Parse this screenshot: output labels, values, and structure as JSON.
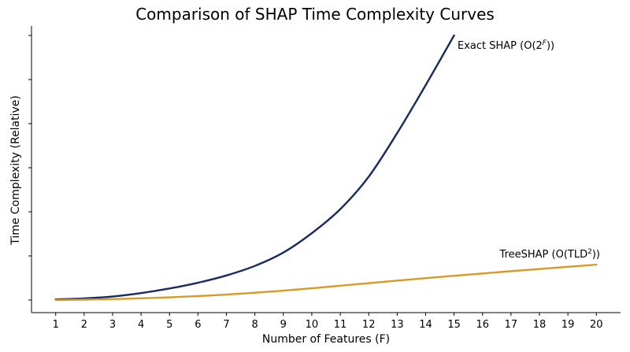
{
  "chart_data": {
    "type": "line",
    "title": "Comparison of SHAP Time Complexity Curves",
    "xlabel": "Number of Features (F)",
    "ylabel": "Time Complexity (Relative)",
    "xlim": [
      0.15,
      20.85
    ],
    "ylim": [
      0,
      1
    ],
    "x_ticks": [
      1,
      2,
      3,
      4,
      5,
      6,
      7,
      8,
      9,
      10,
      11,
      12,
      13,
      14,
      15,
      16,
      17,
      18,
      19,
      20
    ],
    "y_tick_labels_visible": false,
    "y_tick_count": 7,
    "grid": false,
    "legend": "none",
    "series": [
      {
        "name_prefix": "Exact SHAP (O(2",
        "name_sup": "F",
        "name_suffix": "))",
        "color": "#172a61",
        "x": [
          1,
          2,
          3,
          4,
          5,
          6,
          7,
          8,
          9,
          10,
          11,
          12,
          13,
          14,
          15
        ],
        "y": [
          0.0025,
          0.0061,
          0.0131,
          0.0261,
          0.0436,
          0.0654,
          0.0929,
          0.1289,
          0.1794,
          0.2526,
          0.3434,
          0.4662,
          0.6309,
          0.8118,
          1.0
        ]
      },
      {
        "name_prefix": "TreeSHAP (O(TLD",
        "name_sup": "2",
        "name_suffix": "))",
        "color": "#d79a27",
        "x": [
          1,
          2,
          3,
          4,
          5,
          6,
          7,
          8,
          9,
          10,
          11,
          12,
          13,
          14,
          15,
          16,
          17,
          18,
          19,
          20
        ],
        "y": [
          0.0,
          0.0015,
          0.0035,
          0.0064,
          0.0102,
          0.0149,
          0.0207,
          0.0276,
          0.0355,
          0.0444,
          0.054,
          0.0638,
          0.0734,
          0.0827,
          0.0916,
          0.1003,
          0.109,
          0.1173,
          0.1257,
          0.1336
        ]
      }
    ]
  }
}
